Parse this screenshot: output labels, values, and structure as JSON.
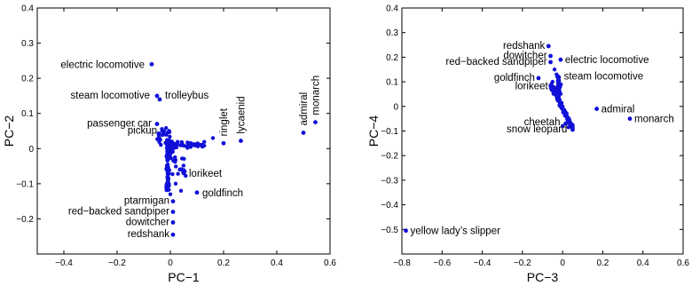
{
  "chart_data": [
    {
      "type": "scatter",
      "xlabel": "PC−1",
      "ylabel": "PC−2",
      "xlim": [
        -0.5,
        0.6
      ],
      "ylim": [
        -0.3,
        0.4
      ],
      "xticks": [
        -0.4,
        -0.2,
        0,
        0.2,
        0.4,
        0.6
      ],
      "xtick_labels": [
        "−0.4",
        "−0.2",
        "0",
        "0.2",
        "0.4",
        "0.6"
      ],
      "yticks": [
        -0.2,
        -0.1,
        0,
        0.1,
        0.2,
        0.3,
        0.4
      ],
      "ytick_labels": [
        "−0.2",
        "−0.1",
        "0",
        "0.1",
        "0.2",
        "0.3",
        "0.4"
      ],
      "color": "#1010d8",
      "labeled_points": [
        {
          "label": "electric locomotive",
          "x": -0.07,
          "y": 0.24
        },
        {
          "label": "steam locomotive",
          "x": -0.05,
          "y": 0.15
        },
        {
          "label": "trolleybus",
          "x": -0.04,
          "y": 0.14
        },
        {
          "label": "passenger car",
          "x": -0.05,
          "y": 0.07
        },
        {
          "label": "pickup",
          "x": -0.03,
          "y": 0.05
        },
        {
          "label": "ringlet",
          "x": 0.2,
          "y": 0.015
        },
        {
          "label": "lycaenid",
          "x": 0.265,
          "y": 0.022
        },
        {
          "label": "admiral",
          "x": 0.5,
          "y": 0.045
        },
        {
          "label": "monarch",
          "x": 0.545,
          "y": 0.075
        },
        {
          "label": "lorikeet",
          "x": 0.05,
          "y": -0.07
        },
        {
          "label": "goldfinch",
          "x": 0.1,
          "y": -0.125
        },
        {
          "label": "ptarmigan",
          "x": 0.01,
          "y": -0.15
        },
        {
          "label": "red−backed sandpiper",
          "x": 0.01,
          "y": -0.18
        },
        {
          "label": "dowitcher",
          "x": 0.01,
          "y": -0.21
        },
        {
          "label": "redshank",
          "x": 0.01,
          "y": -0.245
        }
      ]
    },
    {
      "type": "scatter",
      "xlabel": "PC−3",
      "ylabel": "PC−4",
      "xlim": [
        -0.8,
        0.6
      ],
      "ylim": [
        -0.6,
        0.4
      ],
      "xticks": [
        -0.8,
        -0.6,
        -0.4,
        -0.2,
        0,
        0.2,
        0.4,
        0.6
      ],
      "xtick_labels": [
        "−0.8",
        "−0.6",
        "−0.4",
        "−0.2",
        "0",
        "0.2",
        "0.4",
        "0.6"
      ],
      "yticks": [
        -0.5,
        -0.4,
        -0.3,
        -0.2,
        -0.1,
        0,
        0.1,
        0.2,
        0.3,
        0.4
      ],
      "ytick_labels": [
        "−0.5",
        "−0.4",
        "−0.3",
        "−0.2",
        "−0.1",
        "0",
        "0.1",
        "0.2",
        "0.3",
        "0.4"
      ],
      "color": "#1010d8",
      "labeled_points": [
        {
          "label": "redshank",
          "x": -0.07,
          "y": 0.245
        },
        {
          "label": "dowitcher",
          "x": -0.06,
          "y": 0.205
        },
        {
          "label": "red−backed sandpiper",
          "x": -0.06,
          "y": 0.18
        },
        {
          "label": "electric locomotive",
          "x": -0.01,
          "y": 0.19
        },
        {
          "label": "goldfinch",
          "x": -0.12,
          "y": 0.115
        },
        {
          "label": "lorikeet",
          "x": -0.055,
          "y": 0.08
        },
        {
          "label": "steam locomotive",
          "x": -0.02,
          "y": 0.12
        },
        {
          "label": "admiral",
          "x": 0.17,
          "y": -0.01
        },
        {
          "label": "monarch",
          "x": 0.335,
          "y": -0.05
        },
        {
          "label": "cheetah",
          "x": 0.015,
          "y": -0.07
        },
        {
          "label": "snow leopard",
          "x": 0.05,
          "y": -0.095
        },
        {
          "label": "yellow lady’s slipper",
          "x": -0.78,
          "y": -0.505
        }
      ]
    }
  ]
}
